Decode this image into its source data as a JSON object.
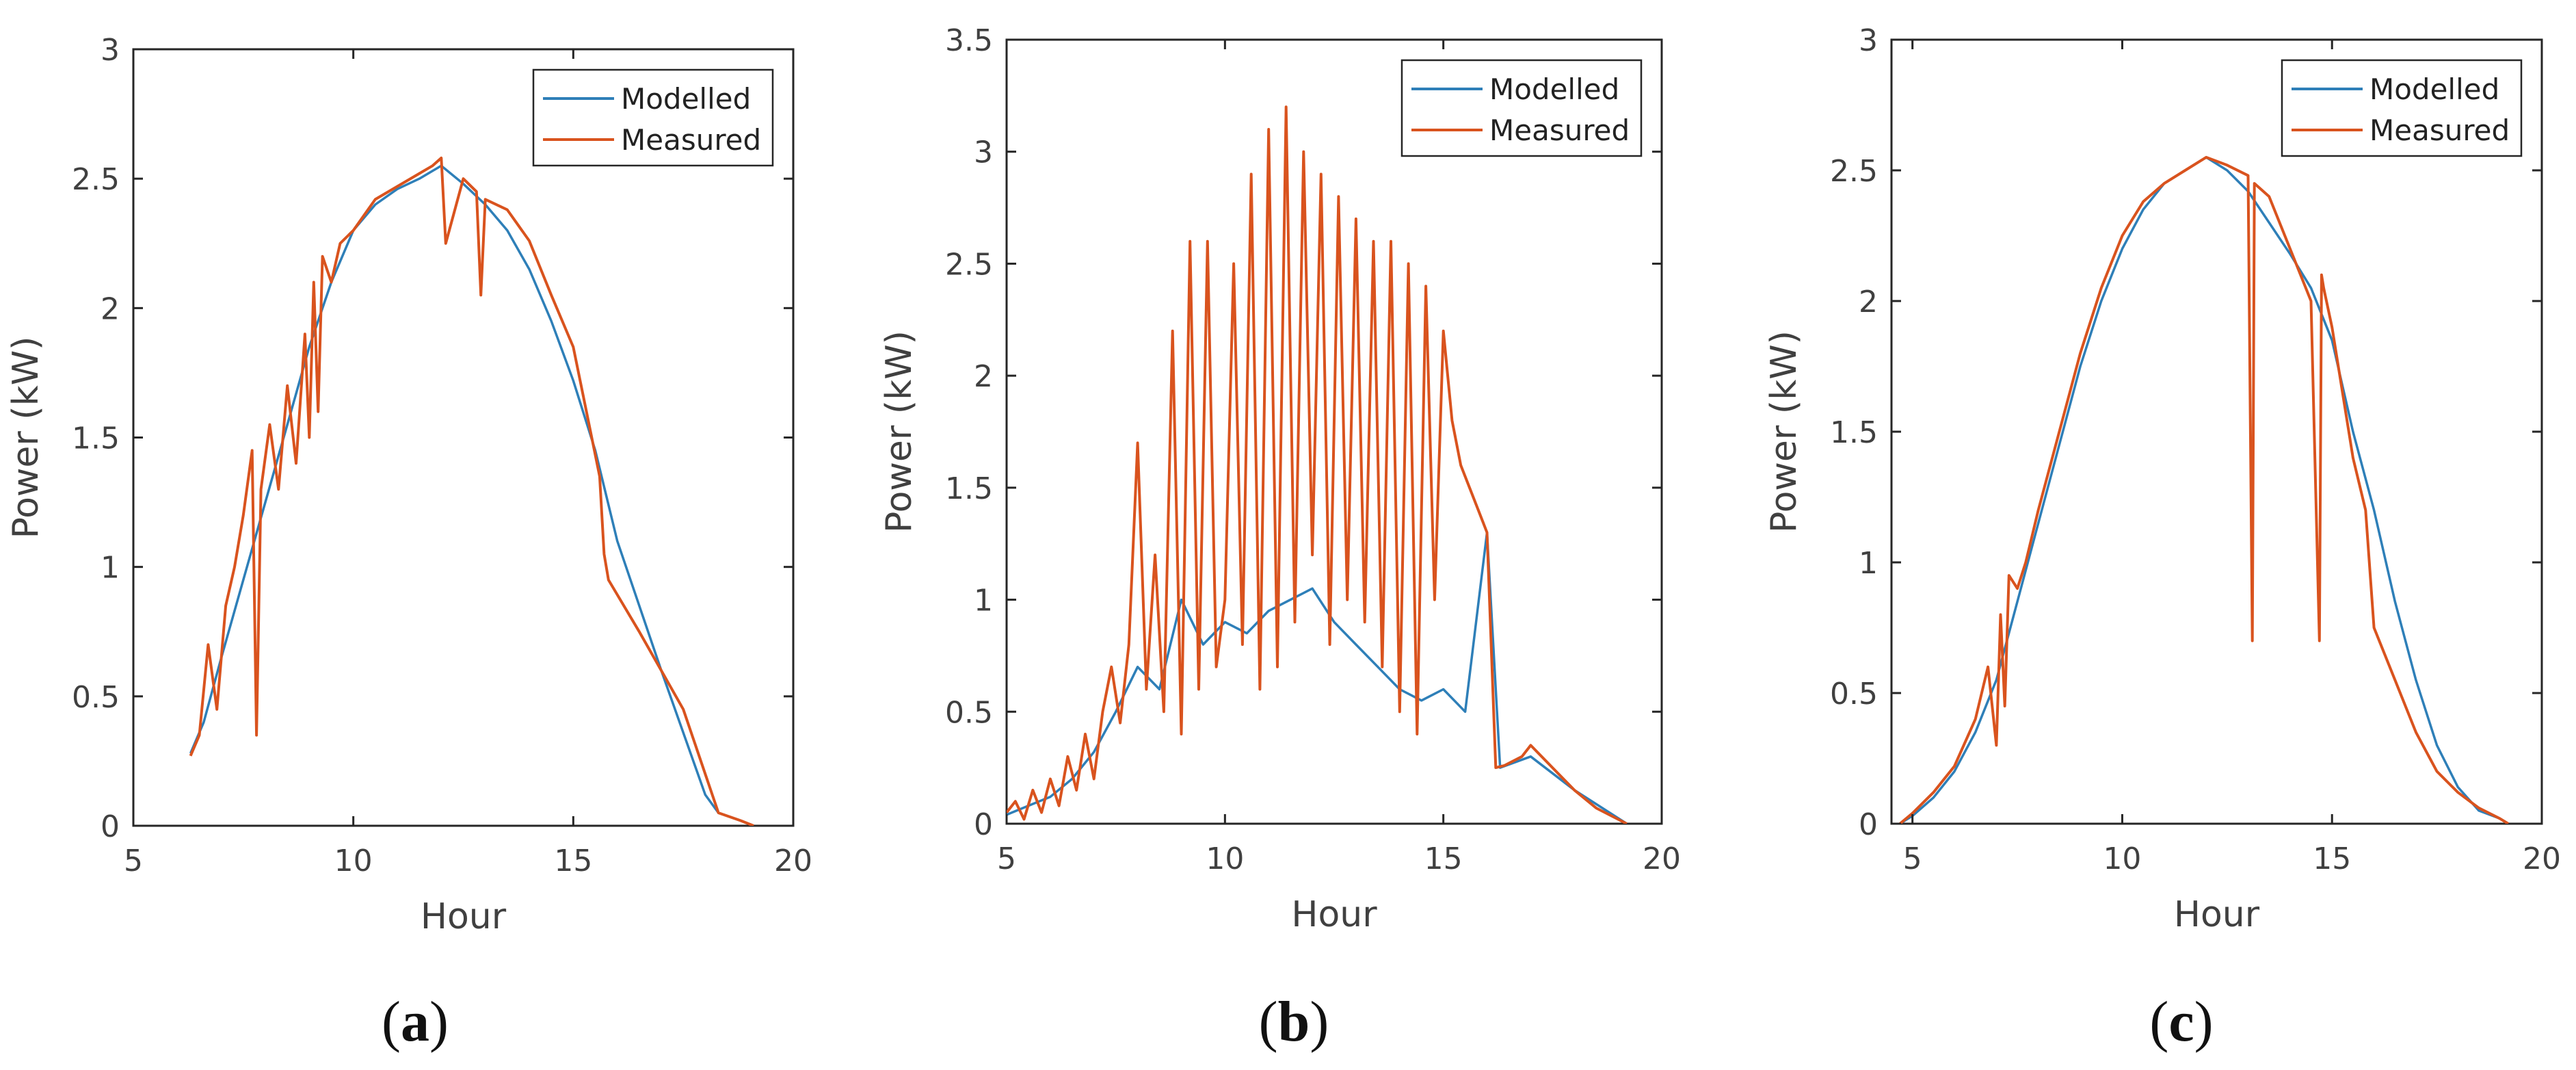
{
  "figure_labels": [
    {
      "open": "(",
      "letter": "a",
      "close": ")"
    },
    {
      "open": "(",
      "letter": "b",
      "close": ")"
    },
    {
      "open": "(",
      "letter": "c",
      "close": ")"
    }
  ],
  "colors": {
    "modelled": "#2e7fb8",
    "measured": "#d9531e",
    "axis": "#262626",
    "tick_text": "#404040"
  },
  "chart_data": [
    {
      "type": "line",
      "title": "",
      "xlabel": "Hour",
      "ylabel": "Power (kW)",
      "xlim": [
        5,
        20
      ],
      "ylim": [
        0,
        3
      ],
      "xticks": [
        5,
        10,
        15,
        20
      ],
      "yticks": [
        0,
        0.5,
        1,
        1.5,
        2,
        2.5,
        3
      ],
      "xtick_labels": [
        "5",
        "10",
        "15",
        "20"
      ],
      "ytick_labels": [
        "0",
        "0.5",
        "1",
        "1.5",
        "2",
        "2.5",
        "3"
      ],
      "grid": false,
      "legend_position": "top-right",
      "series": [
        {
          "name": "Modelled",
          "color": "#2e7fb8",
          "x": [
            6.3,
            6.6,
            7.0,
            7.5,
            8.0,
            8.5,
            9.0,
            9.5,
            10.0,
            10.5,
            11.0,
            11.5,
            12.0,
            12.5,
            13.0,
            13.5,
            14.0,
            14.5,
            15.0,
            15.5,
            16.0,
            17.0,
            18.0,
            18.3,
            18.8,
            19.1
          ],
          "y": [
            0.28,
            0.4,
            0.65,
            0.95,
            1.25,
            1.55,
            1.85,
            2.1,
            2.3,
            2.4,
            2.46,
            2.5,
            2.55,
            2.48,
            2.4,
            2.3,
            2.15,
            1.95,
            1.72,
            1.45,
            1.1,
            0.6,
            0.12,
            0.05,
            0.02,
            0.0
          ]
        },
        {
          "name": "Measured",
          "color": "#d9531e",
          "x": [
            6.3,
            6.5,
            6.7,
            6.9,
            7.1,
            7.3,
            7.5,
            7.7,
            7.8,
            7.9,
            8.1,
            8.3,
            8.5,
            8.7,
            8.9,
            9.0,
            9.1,
            9.2,
            9.3,
            9.5,
            9.7,
            10.0,
            10.5,
            11.0,
            11.5,
            11.8,
            12.0,
            12.1,
            12.5,
            12.8,
            12.9,
            13.0,
            13.5,
            14.0,
            14.5,
            15.0,
            15.3,
            15.6,
            15.7,
            15.8,
            16.5,
            17.5,
            18.3,
            18.8,
            19.1
          ],
          "y": [
            0.27,
            0.35,
            0.7,
            0.45,
            0.85,
            1.0,
            1.2,
            1.45,
            0.35,
            1.3,
            1.55,
            1.3,
            1.7,
            1.4,
            1.9,
            1.5,
            2.1,
            1.6,
            2.2,
            2.1,
            2.25,
            2.3,
            2.42,
            2.47,
            2.52,
            2.55,
            2.58,
            2.25,
            2.5,
            2.45,
            2.05,
            2.42,
            2.38,
            2.26,
            2.05,
            1.85,
            1.6,
            1.35,
            1.05,
            0.95,
            0.75,
            0.45,
            0.05,
            0.02,
            0.0
          ]
        }
      ]
    },
    {
      "type": "line",
      "title": "",
      "xlabel": "Hour",
      "ylabel": "Power (kW)",
      "xlim": [
        5,
        20
      ],
      "ylim": [
        0,
        3.5
      ],
      "xticks": [
        5,
        10,
        15,
        20
      ],
      "yticks": [
        0,
        0.5,
        1,
        1.5,
        2,
        2.5,
        3,
        3.5
      ],
      "xtick_labels": [
        "5",
        "10",
        "15",
        "20"
      ],
      "ytick_labels": [
        "0",
        "0.5",
        "1",
        "1.5",
        "2",
        "2.5",
        "3",
        "3.5"
      ],
      "grid": false,
      "legend_position": "top-right",
      "series": [
        {
          "name": "Modelled",
          "color": "#2e7fb8",
          "x": [
            5.0,
            5.5,
            6.0,
            6.5,
            7.0,
            7.5,
            8.0,
            8.5,
            9.0,
            9.5,
            10.0,
            10.5,
            11.0,
            11.5,
            12.0,
            12.5,
            13.0,
            13.5,
            14.0,
            14.5,
            15.0,
            15.5,
            16.0,
            16.3,
            17.0,
            18.0,
            19.2
          ],
          "y": [
            0.04,
            0.08,
            0.12,
            0.2,
            0.32,
            0.5,
            0.7,
            0.6,
            1.0,
            0.8,
            0.9,
            0.85,
            0.95,
            1.0,
            1.05,
            0.9,
            0.8,
            0.7,
            0.6,
            0.55,
            0.6,
            0.5,
            1.3,
            0.25,
            0.3,
            0.15,
            0.0
          ]
        },
        {
          "name": "Measured",
          "color": "#d9531e",
          "x": [
            5.0,
            5.2,
            5.4,
            5.6,
            5.8,
            6.0,
            6.2,
            6.4,
            6.6,
            6.8,
            7.0,
            7.2,
            7.4,
            7.6,
            7.8,
            8.0,
            8.2,
            8.4,
            8.6,
            8.8,
            9.0,
            9.2,
            9.4,
            9.6,
            9.8,
            10.0,
            10.2,
            10.4,
            10.6,
            10.8,
            11.0,
            11.2,
            11.4,
            11.6,
            11.8,
            12.0,
            12.2,
            12.4,
            12.6,
            12.8,
            13.0,
            13.2,
            13.4,
            13.6,
            13.8,
            14.0,
            14.2,
            14.4,
            14.6,
            14.8,
            15.0,
            15.2,
            15.4,
            15.6,
            15.8,
            16.0,
            16.2,
            16.4,
            16.8,
            17.0,
            17.5,
            18.0,
            18.5,
            19.2
          ],
          "y": [
            0.05,
            0.1,
            0.02,
            0.15,
            0.05,
            0.2,
            0.08,
            0.3,
            0.15,
            0.4,
            0.2,
            0.5,
            0.7,
            0.45,
            0.8,
            1.7,
            0.6,
            1.2,
            0.5,
            2.2,
            0.4,
            2.6,
            0.6,
            2.6,
            0.7,
            1.0,
            2.5,
            0.8,
            2.9,
            0.6,
            3.1,
            0.7,
            3.2,
            0.9,
            3.0,
            1.2,
            2.9,
            0.8,
            2.8,
            1.0,
            2.7,
            0.9,
            2.6,
            0.7,
            2.6,
            0.5,
            2.5,
            0.4,
            2.4,
            1.0,
            2.2,
            1.8,
            1.6,
            1.5,
            1.4,
            1.3,
            0.25,
            0.26,
            0.3,
            0.35,
            0.25,
            0.15,
            0.07,
            0.0
          ]
        }
      ]
    },
    {
      "type": "line",
      "title": "",
      "xlabel": "Hour",
      "ylabel": "Power (kW)",
      "xlim": [
        4.5,
        20
      ],
      "ylim": [
        0,
        3
      ],
      "xticks": [
        5,
        10,
        15,
        20
      ],
      "yticks": [
        0,
        0.5,
        1,
        1.5,
        2,
        2.5,
        3
      ],
      "xtick_labels": [
        "5",
        "10",
        "15",
        "20"
      ],
      "ytick_labels": [
        "0",
        "0.5",
        "1",
        "1.5",
        "2",
        "2.5",
        "3"
      ],
      "grid": false,
      "legend_position": "top-right",
      "series": [
        {
          "name": "Modelled",
          "color": "#2e7fb8",
          "x": [
            4.7,
            5.0,
            5.5,
            6.0,
            6.5,
            7.0,
            7.5,
            8.0,
            8.5,
            9.0,
            9.5,
            10.0,
            10.5,
            11.0,
            11.5,
            12.0,
            12.5,
            13.0,
            13.5,
            14.0,
            14.5,
            15.0,
            15.5,
            16.0,
            16.5,
            17.0,
            17.5,
            18.0,
            18.5,
            19.0,
            19.2
          ],
          "y": [
            0.0,
            0.03,
            0.1,
            0.2,
            0.35,
            0.55,
            0.85,
            1.15,
            1.45,
            1.75,
            2.0,
            2.2,
            2.35,
            2.45,
            2.5,
            2.55,
            2.5,
            2.42,
            2.3,
            2.18,
            2.05,
            1.85,
            1.5,
            1.2,
            0.85,
            0.55,
            0.3,
            0.14,
            0.05,
            0.02,
            0.0
          ]
        },
        {
          "name": "Measured",
          "color": "#d9531e",
          "x": [
            4.7,
            5.0,
            5.5,
            6.0,
            6.5,
            6.8,
            7.0,
            7.1,
            7.2,
            7.3,
            7.5,
            7.7,
            8.0,
            8.5,
            9.0,
            9.5,
            10.0,
            10.5,
            11.0,
            11.5,
            12.0,
            12.5,
            13.0,
            13.1,
            13.15,
            13.5,
            14.0,
            14.5,
            14.7,
            14.75,
            14.8,
            15.0,
            15.5,
            15.8,
            16.0,
            16.5,
            17.0,
            17.5,
            18.0,
            18.5,
            19.0,
            19.2
          ],
          "y": [
            0.0,
            0.04,
            0.12,
            0.22,
            0.4,
            0.6,
            0.3,
            0.8,
            0.45,
            0.95,
            0.9,
            1.0,
            1.2,
            1.5,
            1.8,
            2.05,
            2.25,
            2.38,
            2.45,
            2.5,
            2.55,
            2.52,
            2.48,
            0.7,
            2.45,
            2.4,
            2.2,
            2.0,
            0.7,
            2.1,
            2.05,
            1.9,
            1.4,
            1.2,
            0.75,
            0.55,
            0.35,
            0.2,
            0.12,
            0.06,
            0.02,
            0.0
          ]
        }
      ]
    }
  ]
}
